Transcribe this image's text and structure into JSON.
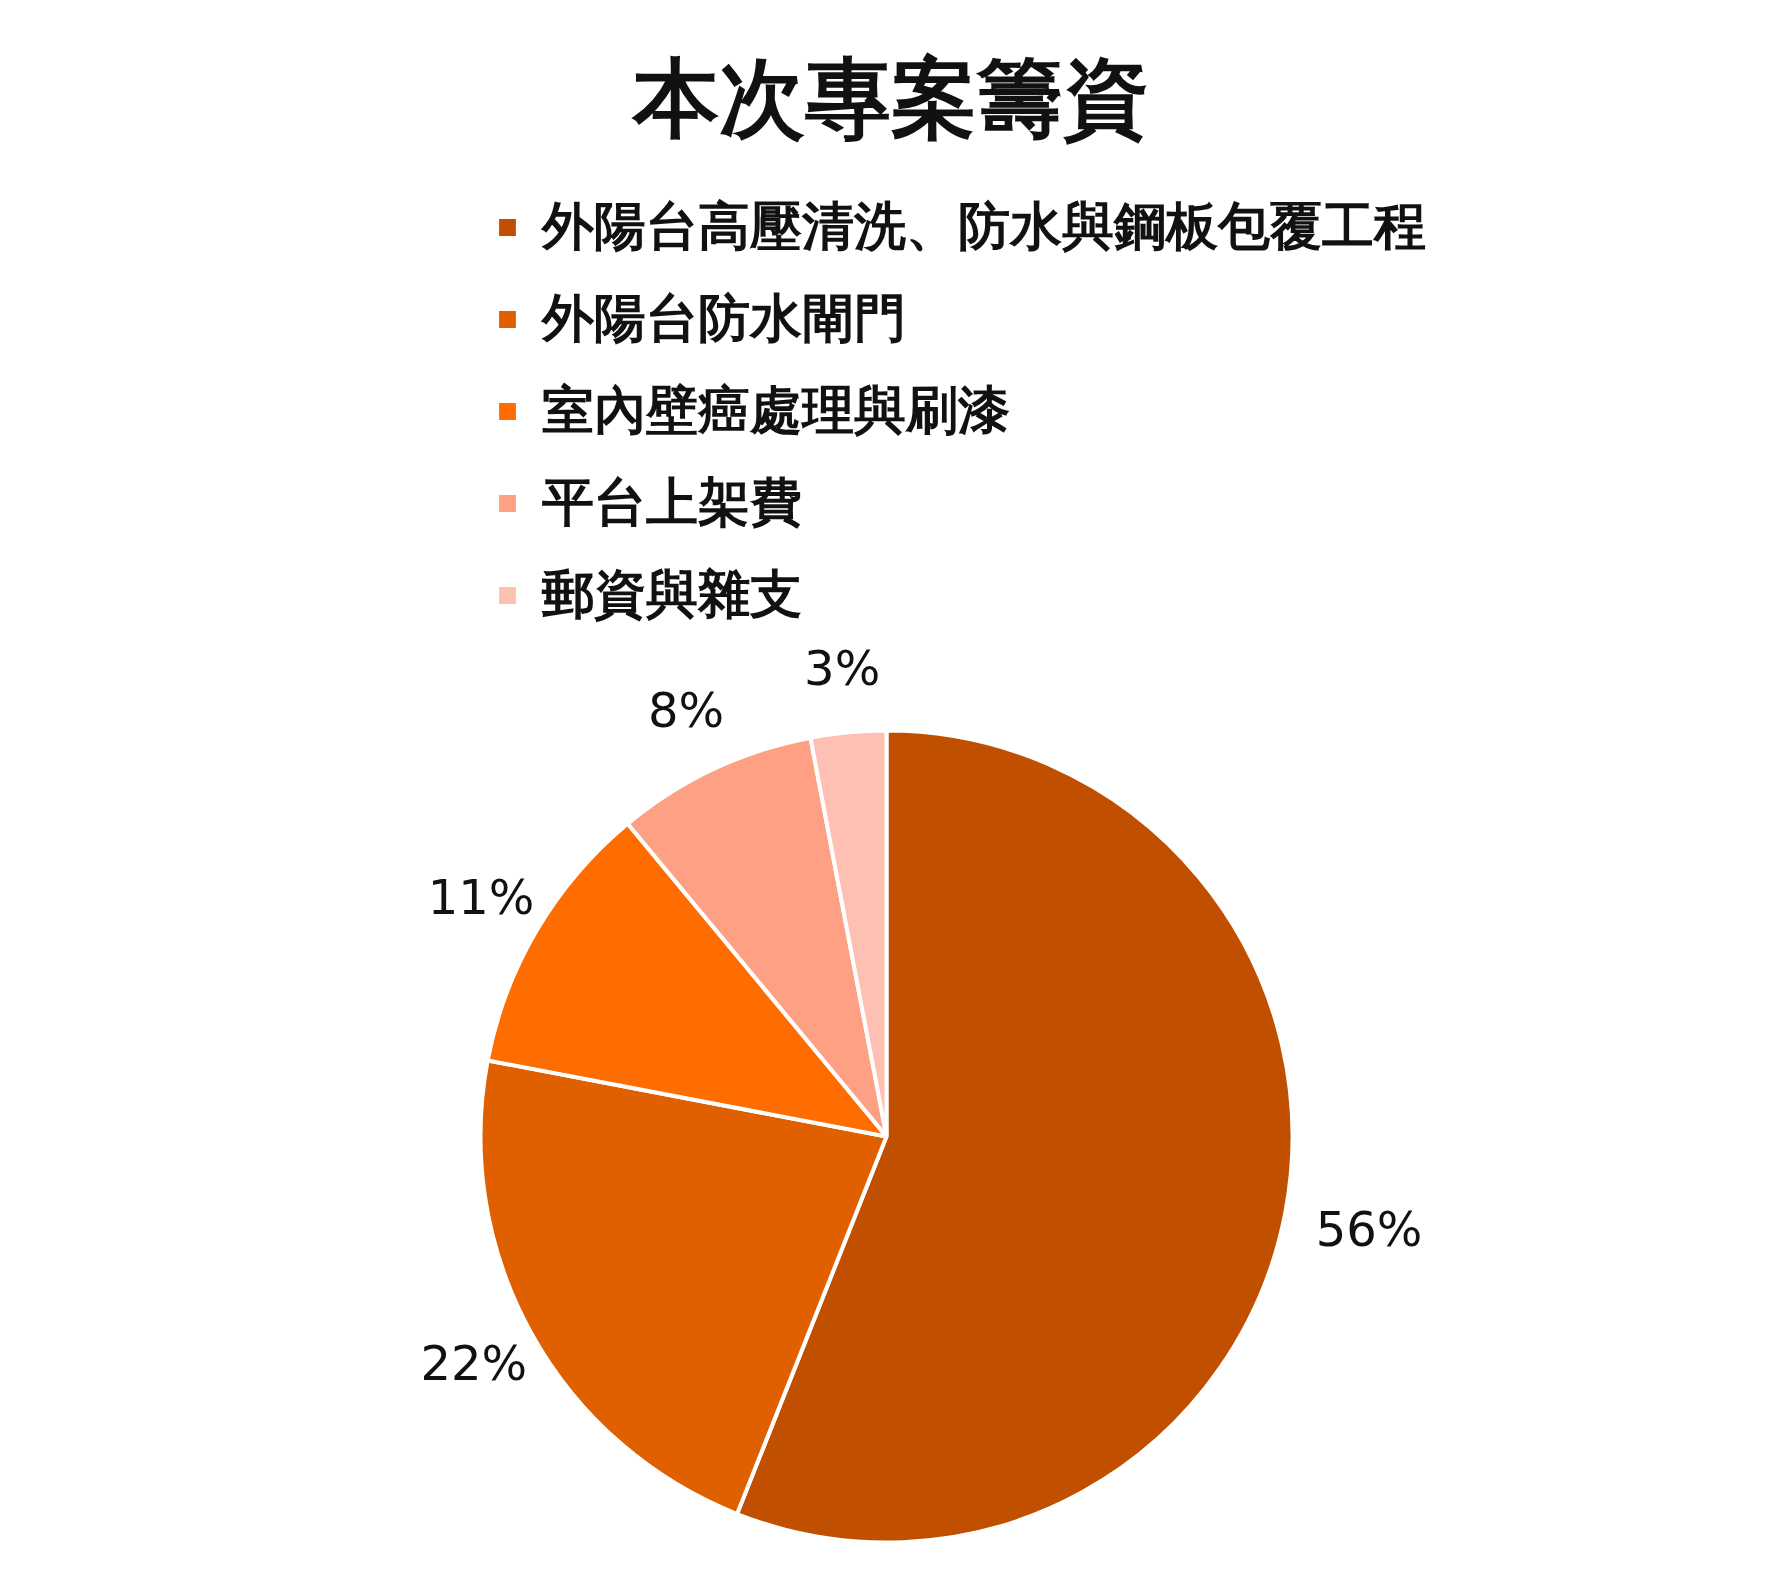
{
  "chart_data": {
    "type": "pie",
    "title": "本次專案籌資",
    "categories": [
      "外陽台高壓清洗、防水與鋼板包覆工程",
      "外陽台防水閘門",
      "室內壁癌處理與刷漆",
      "平台上架費",
      "郵資與雜支"
    ],
    "values": [
      56,
      22,
      11,
      8,
      3
    ],
    "colors": [
      "#c05000",
      "#e06000",
      "#ff6d00",
      "#fda084",
      "#fec0b2"
    ],
    "value_labels": [
      "56%",
      "22%",
      "11%",
      "8%",
      "3%"
    ],
    "legend": "top"
  }
}
